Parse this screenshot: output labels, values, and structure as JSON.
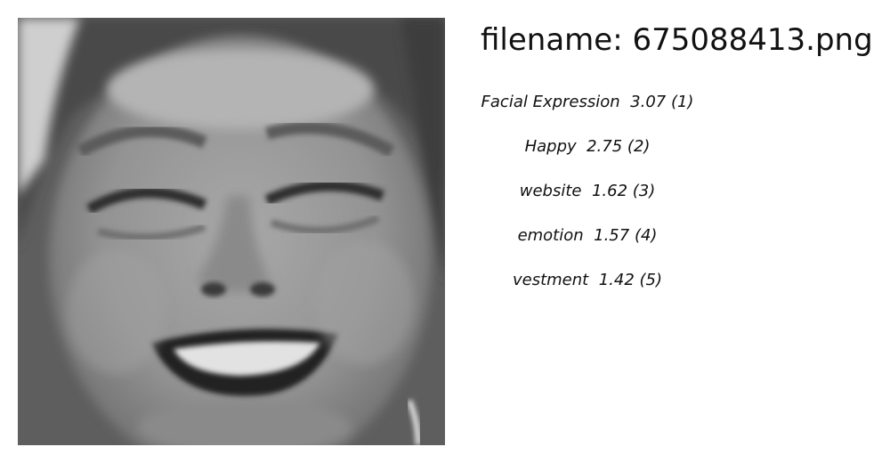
{
  "header": {
    "filename_label": "filename: 675088413.png"
  },
  "photo": {
    "icon": "grayscale-face-photo"
  },
  "tags": [
    {
      "label": "Facial Expression",
      "score": "3.07",
      "rank": "(1)"
    },
    {
      "label": "Happy",
      "score": "2.75",
      "rank": "(2)"
    },
    {
      "label": "website",
      "score": "1.62",
      "rank": "(3)"
    },
    {
      "label": "emotion",
      "score": "1.57",
      "rank": "(4)"
    },
    {
      "label": "vestment",
      "score": "1.42",
      "rank": "(5)"
    }
  ]
}
